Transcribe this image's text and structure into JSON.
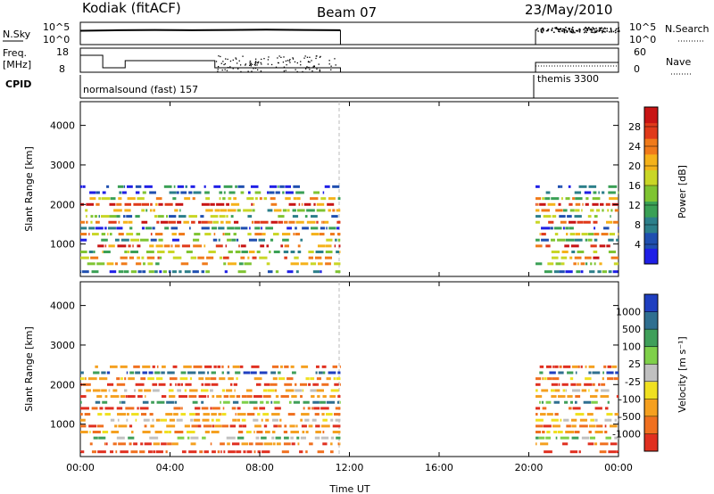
{
  "header": {
    "station": "Kodiak (fitACF)",
    "beam": "Beam 07",
    "date": "23/May/2010"
  },
  "noise_panel": {
    "left_label": "N.Sky",
    "right_label": "N.Search",
    "ticks_left": [
      "10^5",
      "10^0"
    ],
    "ticks_right": [
      "10^5",
      "10^0"
    ],
    "sky_level": [
      4.2,
      4.4,
      4.5,
      4.4,
      4.5,
      4.6,
      4.5,
      4.4
    ],
    "search_level_evening": 4.7
  },
  "freq_panel": {
    "left_label_1": "Freq.",
    "left_label_2": "[MHz]",
    "right_label": "Nave",
    "ticks_left": [
      "18",
      "8"
    ],
    "ticks_right": [
      "60",
      "0"
    ]
  },
  "cpid_panel": {
    "label": "CPID",
    "segments": [
      {
        "label": "normalsound (fast) 157"
      },
      {
        "label": "themis 3300"
      }
    ]
  },
  "axes": {
    "xlabel": "Time UT",
    "xticks": [
      "00:00",
      "04:00",
      "08:00",
      "12:00",
      "16:00",
      "20:00",
      "00:00"
    ],
    "ylabel": "Slant Range [km]",
    "yticks": [
      "1000",
      "2000",
      "3000",
      "4000"
    ]
  },
  "power_colorbar": {
    "label": "Power [dB]",
    "ticks": [
      "4",
      "8",
      "12",
      "16",
      "20",
      "24",
      "28"
    ],
    "colors": [
      "#1f1fe6",
      "#1f4fb0",
      "#2c7f8a",
      "#3aa055",
      "#7fc432",
      "#c9d626",
      "#f5b21a",
      "#f07a1a",
      "#e03a1a",
      "#c81414"
    ]
  },
  "velocity_colorbar": {
    "label": "Velocity [m s⁻¹]",
    "ticks": [
      "1000",
      "500",
      "100",
      "25",
      "-25",
      "-100",
      "-500",
      "-1000"
    ],
    "colors": [
      "#1f3fc0",
      "#2f6f90",
      "#3f9f5a",
      "#7fd04a",
      "#c0c0c0",
      "#f0e020",
      "#f5a020",
      "#f07020",
      "#e03020"
    ]
  },
  "chart_data": {
    "type": "heatmap",
    "title": "Beam 07",
    "xlabel": "Time UT",
    "ylabel": "Slant Range [km]",
    "xlim_hours": [
      0,
      24
    ],
    "ylim_km": [
      180,
      4600
    ],
    "time_intervals_with_data_hours": [
      [
        0,
        11.6
      ],
      [
        20.3,
        24
      ]
    ],
    "slant_range_bands_km": [
      {
        "range": 300,
        "power_db": 8
      },
      {
        "range": 500,
        "power_db": 18
      },
      {
        "range": 650,
        "power_db": 22
      },
      {
        "range": 800,
        "power_db": 14
      },
      {
        "range": 950,
        "power_db": 26
      },
      {
        "range": 1100,
        "power_db": 10
      },
      {
        "range": 1250,
        "power_db": 20
      },
      {
        "range": 1400,
        "power_db": 6
      },
      {
        "range": 1550,
        "power_db": 24
      },
      {
        "range": 1700,
        "power_db": 12
      },
      {
        "range": 1850,
        "power_db": 16
      },
      {
        "range": 2000,
        "power_db": 28
      },
      {
        "range": 2150,
        "power_db": 18
      },
      {
        "range": 2300,
        "power_db": 8
      },
      {
        "range": 2450,
        "power_db": 4
      }
    ],
    "velocity_bands_km": [
      {
        "range": 300,
        "velocity": -1000
      },
      {
        "range": 500,
        "velocity": -500
      },
      {
        "range": 650,
        "velocity": 25
      },
      {
        "range": 800,
        "velocity": -100
      },
      {
        "range": 950,
        "velocity": -500
      },
      {
        "range": 1100,
        "velocity": -25
      },
      {
        "range": 1250,
        "velocity": -100
      },
      {
        "range": 1400,
        "velocity": -1000
      },
      {
        "range": 1550,
        "velocity": 100
      },
      {
        "range": 1700,
        "velocity": -500
      },
      {
        "range": 1850,
        "velocity": -25
      },
      {
        "range": 2000,
        "velocity": -1000
      },
      {
        "range": 2150,
        "velocity": -100
      },
      {
        "range": 2300,
        "velocity": 500
      },
      {
        "range": 2450,
        "velocity": -500
      }
    ]
  }
}
